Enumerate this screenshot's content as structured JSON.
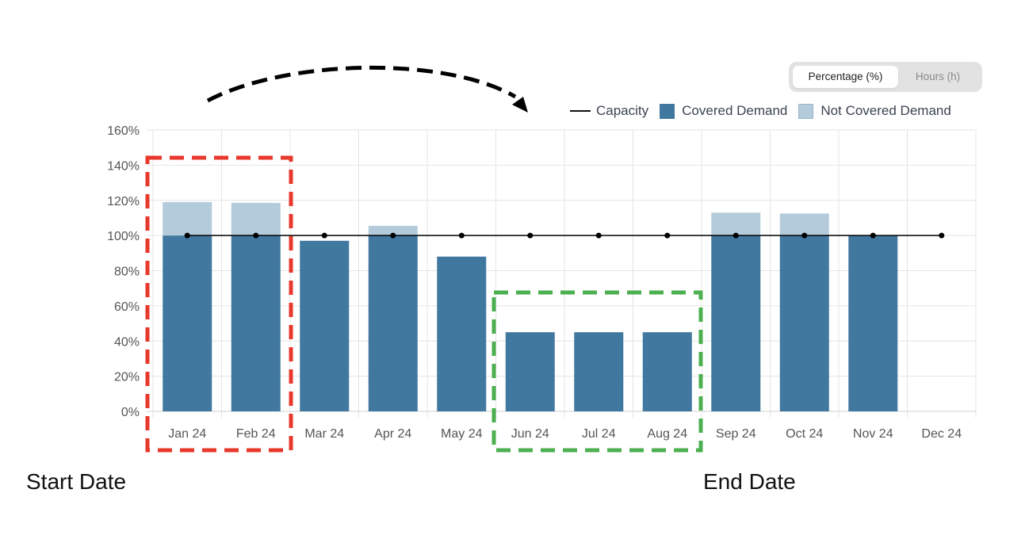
{
  "toggle": {
    "options": [
      {
        "label": "Percentage (%)",
        "active": true
      },
      {
        "label": "Hours (h)",
        "active": false
      }
    ]
  },
  "annotations": {
    "start_label": "Start Date",
    "end_label": "End Date",
    "start_box_color": "#e8382c",
    "end_box_color": "#4caf50",
    "arrow_color": "#000000"
  },
  "chart_data": {
    "type": "bar",
    "stacked": true,
    "categories": [
      "Jan 24",
      "Feb 24",
      "Mar 24",
      "Apr 24",
      "May 24",
      "Jun 24",
      "Jul 24",
      "Aug 24",
      "Sep 24",
      "Oct 24",
      "Nov 24",
      "Dec 24"
    ],
    "series": [
      {
        "name": "Covered Demand",
        "kind": "bar",
        "color": "#41789f",
        "values": [
          100,
          100,
          97,
          100,
          88,
          45,
          45,
          45,
          100,
          100,
          100,
          0
        ]
      },
      {
        "name": "Not Covered Demand",
        "kind": "bar",
        "color": "#b3cbdb",
        "values": [
          19,
          18.5,
          0,
          5.5,
          0,
          0,
          0,
          0,
          13,
          12.5,
          0,
          0
        ]
      },
      {
        "name": "Capacity",
        "kind": "line",
        "color": "#000000",
        "values": [
          100,
          100,
          100,
          100,
          100,
          100,
          100,
          100,
          100,
          100,
          100,
          100
        ]
      }
    ],
    "y_ticks": [
      "0%",
      "20%",
      "40%",
      "60%",
      "80%",
      "100%",
      "120%",
      "140%",
      "160%"
    ],
    "ylim": [
      0,
      160
    ],
    "grid": true,
    "legend_position": "top-right",
    "legend": [
      "Capacity",
      "Covered Demand",
      "Not Covered Demand"
    ]
  }
}
